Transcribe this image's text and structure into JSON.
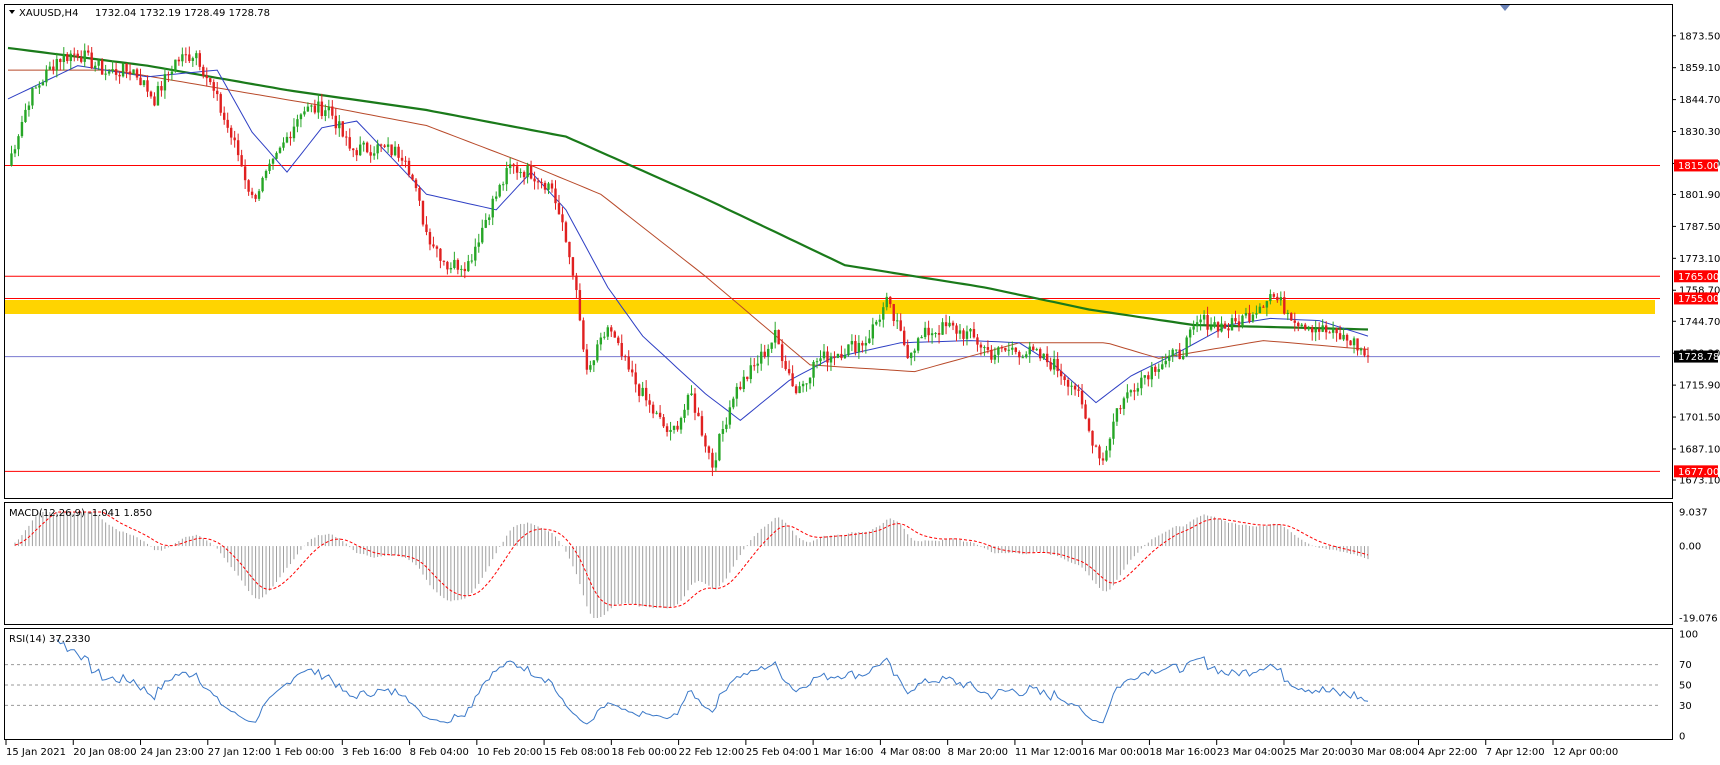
{
  "header": {
    "symbol": "XAUUSD,H4",
    "ohlc": "1732.04 1732.19 1728.49 1728.78"
  },
  "chart_data": [
    {
      "type": "candlestick",
      "title": "XAUUSD,H4",
      "symbol": "XAUUSD",
      "timeframe": "H4",
      "last_bar": {
        "open": 1732.04,
        "high": 1732.19,
        "low": 1728.49,
        "close": 1728.78
      },
      "ylim": [
        1673.1,
        1880.0
      ],
      "y_ticks": [
        "1873.50",
        "1859.10",
        "1844.70",
        "1830.30",
        "1815.90",
        "1801.90",
        "1787.50",
        "1773.10",
        "1758.70",
        "1744.70",
        "1730.30",
        "1715.90",
        "1701.50",
        "1687.10",
        "1673.10"
      ],
      "x_labels": [
        "15 Jan 2021",
        "20 Jan 08:00",
        "24 Jan 23:00",
        "27 Jan 12:00",
        "1 Feb 00:00",
        "3 Feb 16:00",
        "8 Feb 04:00",
        "10 Feb 20:00",
        "15 Feb 08:00",
        "18 Feb 00:00",
        "22 Feb 12:00",
        "25 Feb 04:00",
        "1 Mar 16:00",
        "4 Mar 08:00",
        "8 Mar 20:00",
        "11 Mar 12:00",
        "16 Mar 00:00",
        "18 Mar 16:00",
        "23 Mar 04:00",
        "25 Mar 20:00",
        "30 Mar 08:00",
        "4 Apr 22:00",
        "7 Apr 12:00",
        "12 Apr 00:00"
      ],
      "close_path_keypoints": [
        [
          0,
          1815
        ],
        [
          6,
          1845
        ],
        [
          14,
          1863
        ],
        [
          20,
          1866
        ],
        [
          28,
          1857
        ],
        [
          36,
          1858
        ],
        [
          42,
          1845
        ],
        [
          48,
          1862
        ],
        [
          54,
          1866
        ],
        [
          60,
          1844
        ],
        [
          66,
          1820
        ],
        [
          70,
          1800
        ],
        [
          76,
          1815
        ],
        [
          84,
          1840
        ],
        [
          92,
          1841
        ],
        [
          98,
          1822
        ],
        [
          106,
          1823
        ],
        [
          114,
          1820
        ],
        [
          120,
          1785
        ],
        [
          126,
          1770
        ],
        [
          132,
          1771
        ],
        [
          138,
          1795
        ],
        [
          144,
          1814
        ],
        [
          150,
          1812
        ],
        [
          156,
          1805
        ],
        [
          162,
          1768
        ],
        [
          166,
          1720
        ],
        [
          172,
          1742
        ],
        [
          178,
          1722
        ],
        [
          184,
          1706
        ],
        [
          190,
          1693
        ],
        [
          196,
          1711
        ],
        [
          202,
          1680
        ],
        [
          208,
          1712
        ],
        [
          214,
          1724
        ],
        [
          220,
          1738
        ],
        [
          226,
          1713
        ],
        [
          232,
          1727
        ],
        [
          240,
          1732
        ],
        [
          246,
          1736
        ],
        [
          252,
          1753
        ],
        [
          258,
          1731
        ],
        [
          264,
          1740
        ],
        [
          270,
          1742
        ],
        [
          276,
          1738
        ],
        [
          282,
          1730
        ],
        [
          288,
          1732
        ],
        [
          294,
          1730
        ],
        [
          300,
          1725
        ],
        [
          306,
          1715
        ],
        [
          310,
          1695
        ],
        [
          314,
          1682
        ],
        [
          318,
          1705
        ],
        [
          324,
          1718
        ],
        [
          330,
          1726
        ],
        [
          336,
          1730
        ],
        [
          342,
          1745
        ],
        [
          350,
          1742
        ],
        [
          356,
          1748
        ],
        [
          362,
          1757
        ],
        [
          370,
          1745
        ],
        [
          378,
          1740
        ],
        [
          386,
          1735
        ],
        [
          390,
          1728
        ]
      ],
      "indicators": [
        {
          "name": "MA slow (green)",
          "color": "#1a7a1a",
          "keypoints": [
            [
              0,
              1868
            ],
            [
              40,
              1860
            ],
            [
              80,
              1849
            ],
            [
              120,
              1840
            ],
            [
              160,
              1828
            ],
            [
              200,
              1800
            ],
            [
              240,
              1770
            ],
            [
              280,
              1760
            ],
            [
              310,
              1750
            ],
            [
              340,
              1743
            ],
            [
              390,
              1741
            ]
          ]
        },
        {
          "name": "MA mid (brown)",
          "color": "#b84a2a",
          "keypoints": [
            [
              0,
              1858
            ],
            [
              30,
              1858
            ],
            [
              60,
              1850
            ],
            [
              90,
              1842
            ],
            [
              120,
              1833
            ],
            [
              150,
              1815
            ],
            [
              170,
              1802
            ],
            [
              200,
              1765
            ],
            [
              230,
              1725
            ],
            [
              260,
              1722
            ],
            [
              290,
              1735
            ],
            [
              315,
              1735
            ],
            [
              330,
              1728
            ],
            [
              360,
              1736
            ],
            [
              390,
              1732
            ]
          ]
        },
        {
          "name": "MA fast (blue)",
          "color": "#2e3fc4",
          "keypoints": [
            [
              0,
              1845
            ],
            [
              20,
              1860
            ],
            [
              40,
              1855
            ],
            [
              60,
              1858
            ],
            [
              70,
              1830
            ],
            [
              80,
              1812
            ],
            [
              90,
              1832
            ],
            [
              100,
              1835
            ],
            [
              120,
              1802
            ],
            [
              140,
              1795
            ],
            [
              150,
              1812
            ],
            [
              160,
              1795
            ],
            [
              172,
              1760
            ],
            [
              182,
              1738
            ],
            [
              200,
              1712
            ],
            [
              210,
              1700
            ],
            [
              224,
              1718
            ],
            [
              236,
              1728
            ],
            [
              256,
              1735
            ],
            [
              276,
              1736
            ],
            [
              290,
              1735
            ],
            [
              300,
              1725
            ],
            [
              312,
              1708
            ],
            [
              322,
              1720
            ],
            [
              336,
              1731
            ],
            [
              350,
              1743
            ],
            [
              362,
              1746
            ],
            [
              376,
              1745
            ],
            [
              390,
              1738
            ]
          ]
        }
      ],
      "horizontal_levels": [
        {
          "price": 1815.0,
          "label": "1815.00",
          "color": "#ff0000"
        },
        {
          "price": 1765.0,
          "label": "1765.00",
          "color": "#ff0000"
        },
        {
          "price": 1755.0,
          "label": "1755.00",
          "color": "#ff0000",
          "zone_color": "#ffd400"
        },
        {
          "price": 1677.0,
          "label": "1677.00",
          "color": "#ff0000"
        }
      ],
      "current_price": {
        "value": 1728.78,
        "label": "1728.78",
        "line_color": "#7a7ad0"
      }
    },
    {
      "type": "histogram",
      "title": "MACD(12,26,9) -1.041 1.850",
      "ylim": [
        -19.076,
        9.037
      ],
      "y_ticks": [
        "9.037",
        "0.00",
        "-19.076"
      ],
      "signal_color": "#ff0000",
      "histogram_color": "#a0a0a0"
    },
    {
      "type": "line",
      "title": "RSI(14) 37.2330",
      "ylim": [
        0,
        100
      ],
      "y_ticks": [
        "100",
        "70",
        "50",
        "30",
        "0"
      ],
      "levels": [
        70,
        50,
        30
      ],
      "line_color": "#3a78c8"
    }
  ]
}
